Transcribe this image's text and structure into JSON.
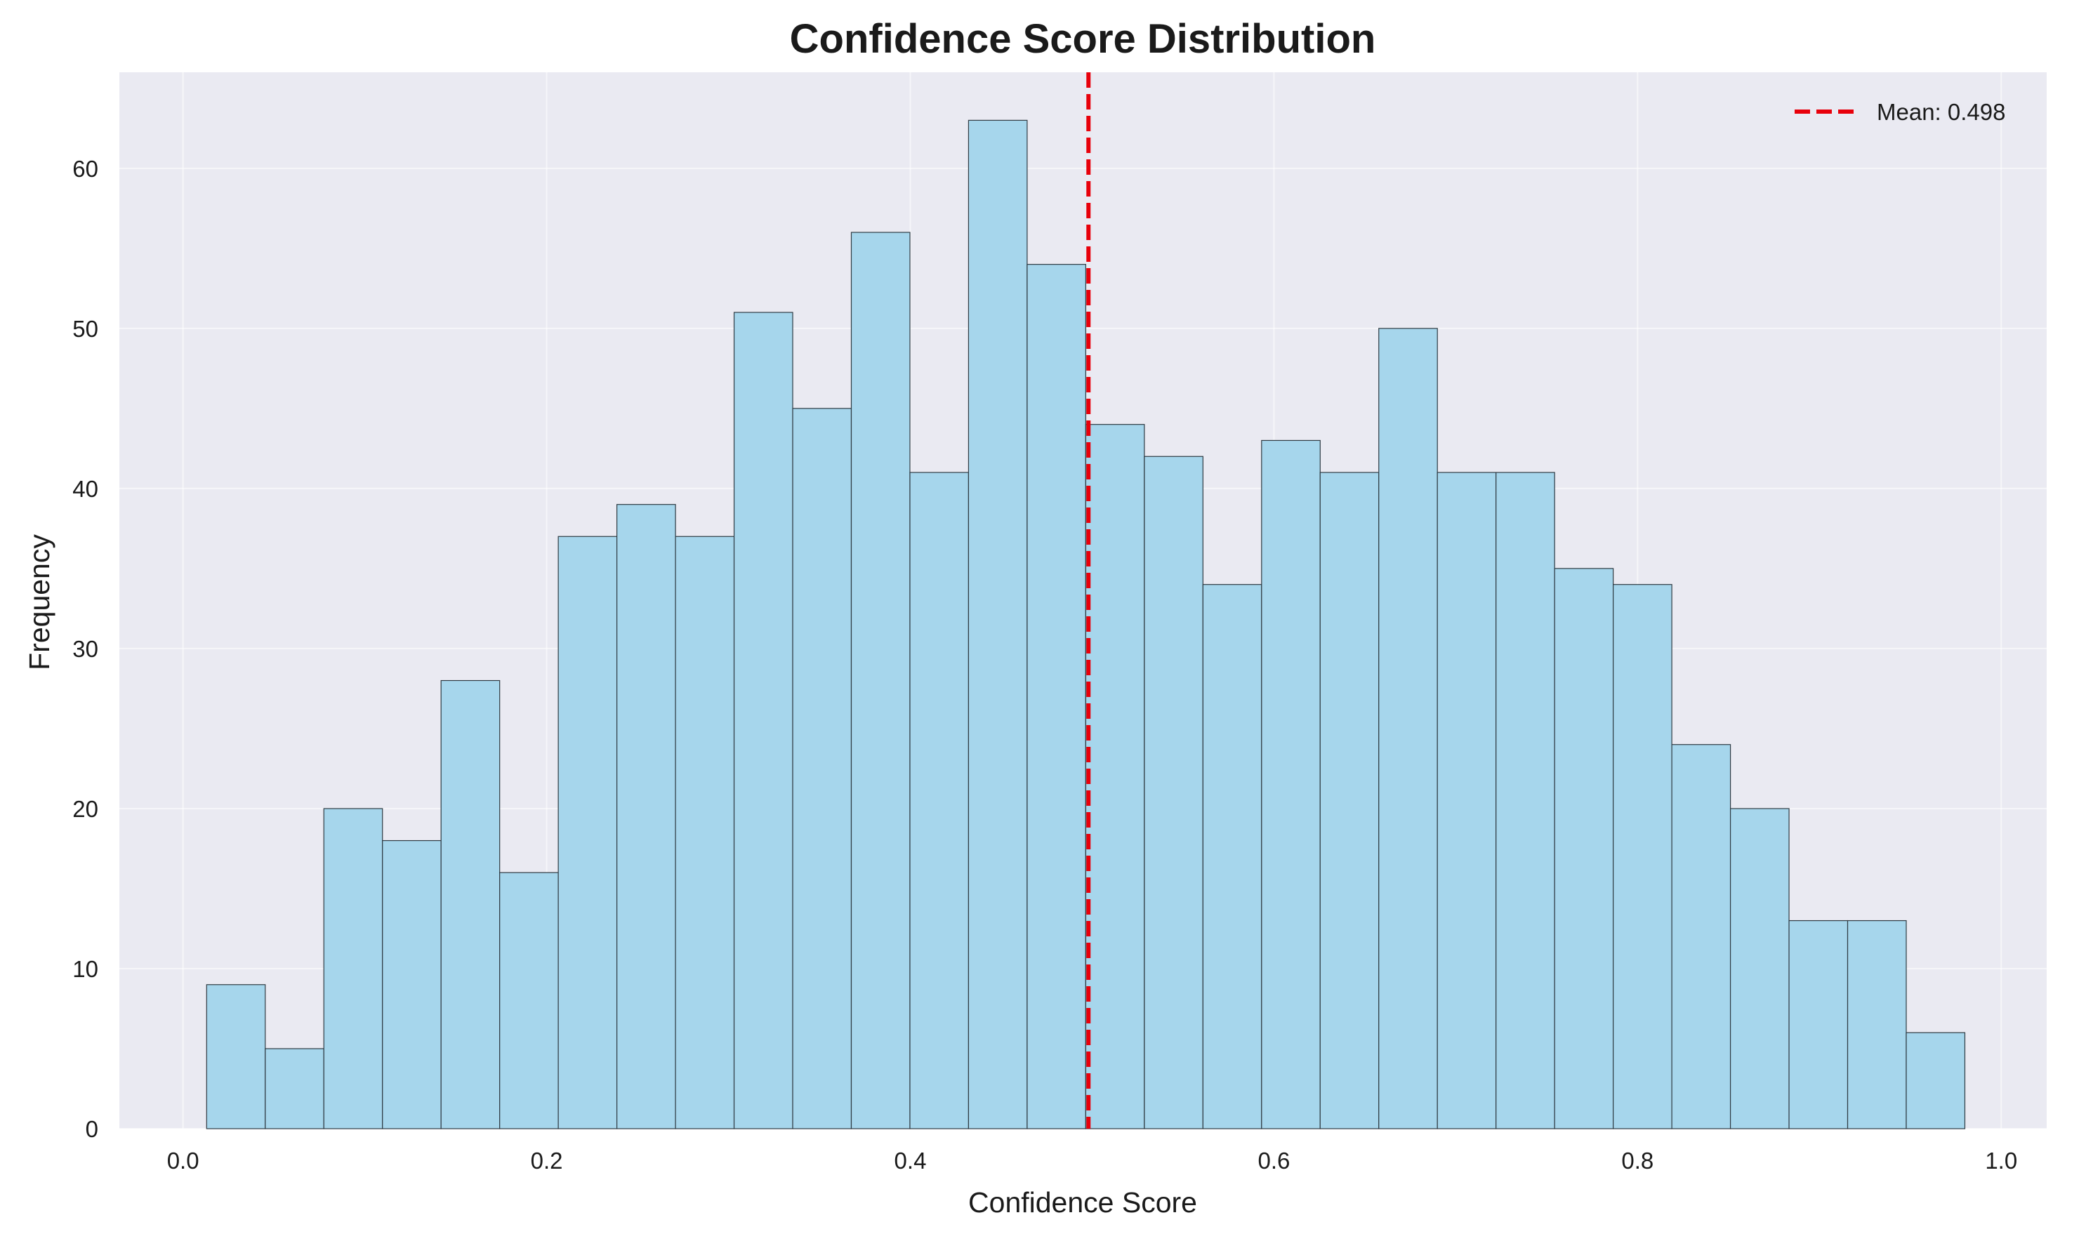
{
  "colors": {
    "plot_background": "#eaeaf2",
    "bar_fill": "#a6d6ec",
    "bar_edge": "#2e3a42",
    "grid": "#ffffff",
    "mean_line": "#e8000b"
  },
  "chart_data": {
    "type": "bar",
    "title": "Confidence Score Distribution",
    "xlabel": "Confidence Score",
    "ylabel": "Frequency",
    "xlim": [
      -0.035,
      1.025
    ],
    "ylim": [
      0,
      66
    ],
    "grid": true,
    "x_ticks": [
      0.0,
      0.2,
      0.4,
      0.6,
      0.8,
      1.0
    ],
    "x_tick_labels": [
      "0.0",
      "0.2",
      "0.4",
      "0.6",
      "0.8",
      "1.0"
    ],
    "y_ticks": [
      0,
      10,
      20,
      30,
      40,
      50,
      60
    ],
    "y_tick_labels": [
      "0",
      "10",
      "20",
      "30",
      "40",
      "50",
      "60"
    ],
    "bin_start": 0.013,
    "bin_end": 0.98,
    "counts": [
      9,
      5,
      20,
      18,
      28,
      16,
      37,
      39,
      37,
      51,
      45,
      56,
      41,
      63,
      54,
      44,
      42,
      34,
      43,
      41,
      50,
      41,
      41,
      35,
      34,
      24,
      20,
      13,
      13,
      6
    ],
    "mean_line": {
      "value": 0.498,
      "label": "Mean: 0.498",
      "style": "dashed"
    },
    "legend": {
      "position": "top-right",
      "entries": [
        "Mean: 0.498"
      ]
    }
  }
}
